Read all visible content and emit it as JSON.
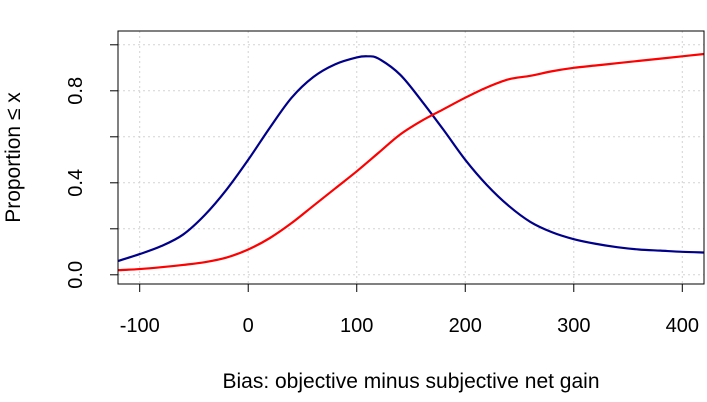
{
  "chart_data": {
    "type": "line",
    "xlabel": "Bias: objective minus subjective net gain",
    "ylabel": "Proportion ≤ x",
    "xlim": [
      -120,
      420
    ],
    "ylim": [
      -0.04,
      1.06
    ],
    "x_ticks": [
      -100,
      0,
      100,
      200,
      300,
      400
    ],
    "x_tick_labels": [
      "-100",
      "0",
      "100",
      "200",
      "300",
      "400"
    ],
    "y_ticks": [
      0.0,
      0.2,
      0.4,
      0.6,
      0.8,
      1.0
    ],
    "y_tick_labels": [
      "0.0",
      "",
      "0.4",
      "",
      "0.8",
      ""
    ],
    "grid": true,
    "series": [
      {
        "color": "#00008B",
        "x": [
          -120,
          -100,
          -80,
          -60,
          -40,
          -20,
          0,
          20,
          40,
          60,
          80,
          100,
          110,
          120,
          140,
          160,
          180,
          200,
          220,
          240,
          260,
          280,
          300,
          320,
          340,
          360,
          380,
          400,
          420
        ],
        "y": [
          0.06,
          0.09,
          0.125,
          0.175,
          0.26,
          0.37,
          0.5,
          0.64,
          0.77,
          0.86,
          0.915,
          0.945,
          0.95,
          0.94,
          0.87,
          0.755,
          0.63,
          0.5,
          0.39,
          0.3,
          0.23,
          0.185,
          0.155,
          0.135,
          0.12,
          0.11,
          0.105,
          0.1,
          0.097
        ]
      },
      {
        "color": "#FF0000",
        "x": [
          -120,
          -100,
          -80,
          -60,
          -40,
          -20,
          0,
          20,
          40,
          60,
          80,
          100,
          120,
          140,
          160,
          180,
          200,
          220,
          240,
          260,
          280,
          300,
          320,
          340,
          360,
          380,
          400,
          420
        ],
        "y": [
          0.02,
          0.025,
          0.033,
          0.043,
          0.055,
          0.075,
          0.11,
          0.16,
          0.225,
          0.3,
          0.375,
          0.45,
          0.53,
          0.61,
          0.67,
          0.72,
          0.77,
          0.815,
          0.85,
          0.865,
          0.885,
          0.9,
          0.91,
          0.92,
          0.93,
          0.94,
          0.95,
          0.96
        ]
      }
    ]
  }
}
